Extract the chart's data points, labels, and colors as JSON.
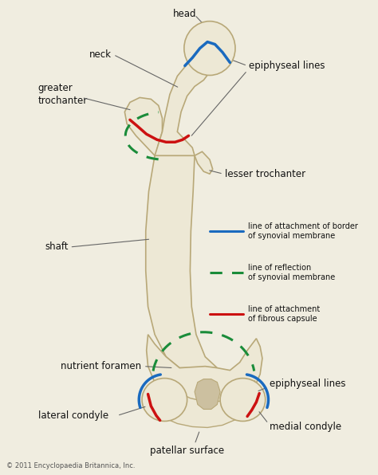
{
  "background_color": "#f0ede0",
  "figsize": [
    4.74,
    5.96
  ],
  "dpi": 100,
  "bone_color": "#ede8d5",
  "bone_edge_color": "#b8a878",
  "bone_shadow": "#d4c8a0",
  "blue_color": "#1a6abf",
  "green_color": "#1a8c3a",
  "red_color": "#cc1111",
  "label_color": "#222222",
  "line_color": "#666666",
  "copyright_text": "© 2011 Encyclopaedia Britannica, Inc.",
  "legend_items": [
    {
      "color": "#1a6abf",
      "linestyle": "solid",
      "label": "line of attachment of border\nof synovial membrane"
    },
    {
      "color": "#1a8c3a",
      "linestyle": "dashed",
      "label": "line of reflection\nof synovial membrane"
    },
    {
      "color": "#cc1111",
      "linestyle": "solid",
      "label": "line of attachment\nof fibrous capsule"
    }
  ]
}
